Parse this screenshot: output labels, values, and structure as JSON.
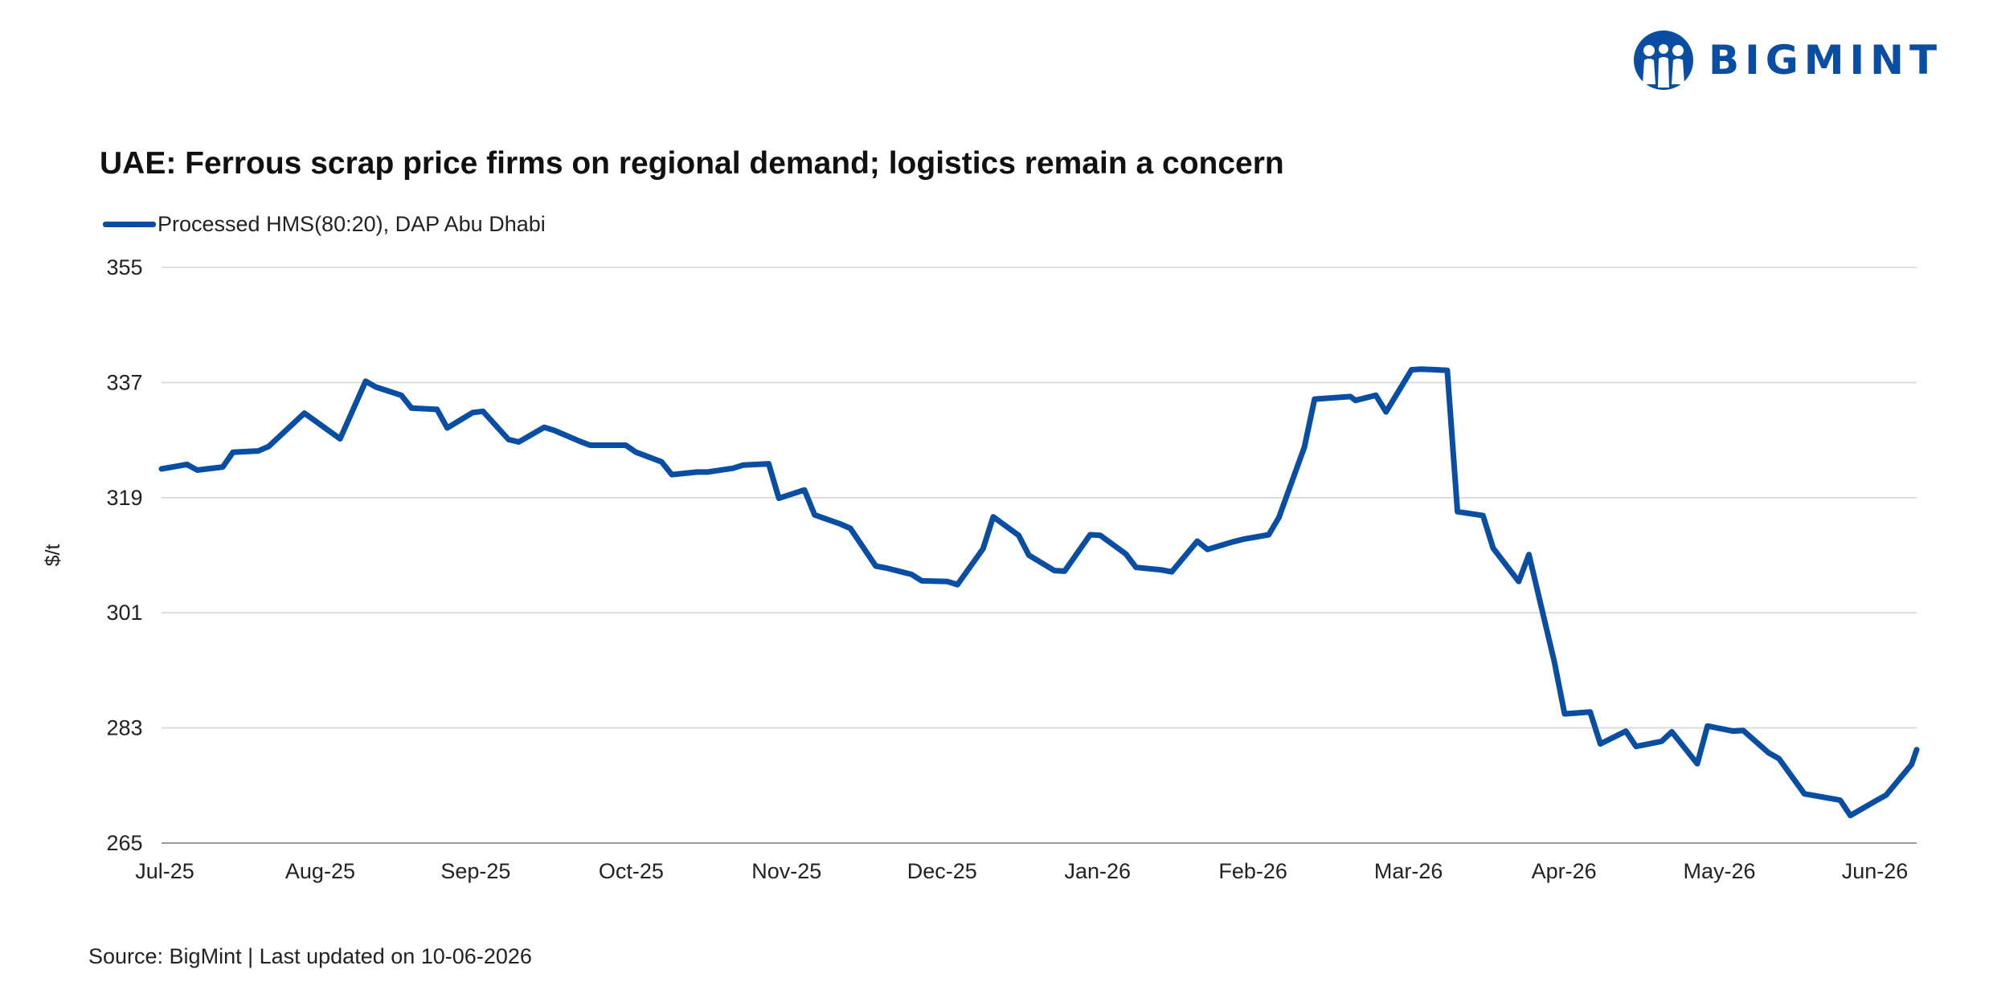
{
  "brand": {
    "name": "BIGMINT",
    "color": "#0a4ea3",
    "logo_icon": "bigmint-people-circle-logo"
  },
  "title": "UAE: Ferrous scrap price firms on regional demand; logistics remain a concern",
  "source": "Source: BigMint | Last updated on 10-06-2026",
  "chart_data": {
    "type": "line",
    "title": "UAE: Ferrous scrap price firms on regional demand; logistics remain a concern",
    "ylabel": "$/t",
    "xlabel": "",
    "ylim": [
      265,
      355
    ],
    "yticks": [
      265,
      283,
      301,
      319,
      337,
      355
    ],
    "xticks": [
      "Jul-25",
      "Aug-25",
      "Sep-25",
      "Oct-25",
      "Nov-25",
      "Dec-25",
      "Jan-26",
      "Feb-26",
      "Mar-26",
      "Apr-26",
      "May-26",
      "Jun-26"
    ],
    "xrange": [
      "2025-07-01",
      "2026-06-10"
    ],
    "grid": "horizontal",
    "legend_position": "top-left",
    "series": [
      {
        "name": "Processed HMS(80:20), DAP Abu Dhabi",
        "color": "#0a4ea3",
        "points": [
          [
            "2025-07-01",
            323.5
          ],
          [
            "2025-07-06",
            324.2
          ],
          [
            "2025-07-08",
            323.3
          ],
          [
            "2025-07-13",
            323.8
          ],
          [
            "2025-07-15",
            326.1
          ],
          [
            "2025-07-20",
            326.3
          ],
          [
            "2025-07-22",
            327.0
          ],
          [
            "2025-07-29",
            332.2
          ],
          [
            "2025-08-05",
            328.2
          ],
          [
            "2025-08-10",
            337.2
          ],
          [
            "2025-08-12",
            336.3
          ],
          [
            "2025-08-17",
            335.0
          ],
          [
            "2025-08-19",
            333.0
          ],
          [
            "2025-08-24",
            332.8
          ],
          [
            "2025-08-26",
            329.9
          ],
          [
            "2025-08-31",
            332.3
          ],
          [
            "2025-09-02",
            332.5
          ],
          [
            "2025-09-07",
            328.1
          ],
          [
            "2025-09-09",
            327.7
          ],
          [
            "2025-09-14",
            330.0
          ],
          [
            "2025-09-16",
            329.5
          ],
          [
            "2025-09-21",
            327.8
          ],
          [
            "2025-09-23",
            327.2
          ],
          [
            "2025-09-30",
            327.2
          ],
          [
            "2025-10-02",
            326.1
          ],
          [
            "2025-10-07",
            324.6
          ],
          [
            "2025-10-09",
            322.6
          ],
          [
            "2025-10-14",
            323.0
          ],
          [
            "2025-10-16",
            323.0
          ],
          [
            "2025-10-21",
            323.6
          ],
          [
            "2025-10-23",
            324.1
          ],
          [
            "2025-10-28",
            324.3
          ],
          [
            "2025-10-30",
            318.9
          ],
          [
            "2025-11-04",
            320.2
          ],
          [
            "2025-11-06",
            316.3
          ],
          [
            "2025-11-11",
            314.9
          ],
          [
            "2025-11-13",
            314.2
          ],
          [
            "2025-11-18",
            308.3
          ],
          [
            "2025-11-20",
            308.0
          ],
          [
            "2025-11-25",
            307.0
          ],
          [
            "2025-11-27",
            306.0
          ],
          [
            "2025-12-02",
            305.9
          ],
          [
            "2025-12-04",
            305.4
          ],
          [
            "2025-12-09",
            311.0
          ],
          [
            "2025-12-11",
            316.0
          ],
          [
            "2025-12-16",
            313.1
          ],
          [
            "2025-12-18",
            310.0
          ],
          [
            "2025-12-23",
            307.6
          ],
          [
            "2025-12-25",
            307.5
          ],
          [
            "2025-12-30",
            313.2
          ],
          [
            "2026-01-01",
            313.1
          ],
          [
            "2026-01-06",
            310.2
          ],
          [
            "2026-01-08",
            308.1
          ],
          [
            "2026-01-13",
            307.7
          ],
          [
            "2026-01-15",
            307.4
          ],
          [
            "2026-01-20",
            312.2
          ],
          [
            "2026-01-22",
            310.9
          ],
          [
            "2026-01-27",
            312.1
          ],
          [
            "2026-01-29",
            312.5
          ],
          [
            "2026-02-03",
            313.2
          ],
          [
            "2026-02-05",
            315.9
          ],
          [
            "2026-02-10",
            326.9
          ],
          [
            "2026-02-12",
            334.4
          ],
          [
            "2026-02-19",
            334.8
          ],
          [
            "2026-02-20",
            334.2
          ],
          [
            "2026-02-24",
            335.0
          ],
          [
            "2026-02-26",
            332.4
          ],
          [
            "2026-03-03",
            339.0
          ],
          [
            "2026-03-05",
            339.1
          ],
          [
            "2026-03-10",
            338.9
          ],
          [
            "2026-03-12",
            316.8
          ],
          [
            "2026-03-17",
            316.2
          ],
          [
            "2026-03-19",
            311.1
          ],
          [
            "2026-03-24",
            305.9
          ],
          [
            "2026-03-26",
            310.1
          ],
          [
            "2026-03-31",
            293.3
          ],
          [
            "2026-04-02",
            285.2
          ],
          [
            "2026-04-07",
            285.5
          ],
          [
            "2026-04-09",
            280.5
          ],
          [
            "2026-04-14",
            282.5
          ],
          [
            "2026-04-16",
            280.1
          ],
          [
            "2026-04-21",
            280.9
          ],
          [
            "2026-04-23",
            282.4
          ],
          [
            "2026-04-28",
            277.4
          ],
          [
            "2026-04-30",
            283.3
          ],
          [
            "2026-05-05",
            282.5
          ],
          [
            "2026-05-07",
            282.6
          ],
          [
            "2026-05-12",
            279.1
          ],
          [
            "2026-05-14",
            278.2
          ],
          [
            "2026-05-19",
            272.7
          ],
          [
            "2026-05-26",
            271.7
          ],
          [
            "2026-05-28",
            269.3
          ],
          [
            "2026-06-02",
            271.6
          ],
          [
            "2026-06-04",
            272.5
          ],
          [
            "2026-06-09",
            277.3
          ],
          [
            "2026-06-10",
            279.6
          ]
        ]
      }
    ]
  }
}
